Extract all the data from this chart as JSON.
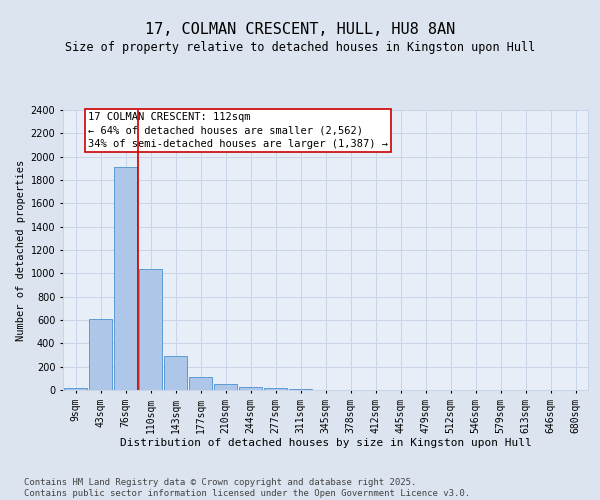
{
  "title": "17, COLMAN CRESCENT, HULL, HU8 8AN",
  "subtitle": "Size of property relative to detached houses in Kingston upon Hull",
  "xlabel": "Distribution of detached houses by size in Kingston upon Hull",
  "ylabel": "Number of detached properties",
  "categories": [
    "9sqm",
    "43sqm",
    "76sqm",
    "110sqm",
    "143sqm",
    "177sqm",
    "210sqm",
    "244sqm",
    "277sqm",
    "311sqm",
    "345sqm",
    "378sqm",
    "412sqm",
    "445sqm",
    "479sqm",
    "512sqm",
    "546sqm",
    "579sqm",
    "613sqm",
    "646sqm",
    "680sqm"
  ],
  "values": [
    20,
    605,
    1910,
    1040,
    295,
    115,
    50,
    30,
    20,
    5,
    0,
    0,
    0,
    0,
    0,
    0,
    0,
    0,
    0,
    0,
    0
  ],
  "bar_color": "#aec6e8",
  "bar_edge_color": "#5b9bd5",
  "red_line_index": 3,
  "annotation_text": "17 COLMAN CRESCENT: 112sqm\n← 64% of detached houses are smaller (2,562)\n34% of semi-detached houses are larger (1,387) →",
  "annotation_box_color": "#ffffff",
  "annotation_box_edge": "#cc0000",
  "red_line_color": "#cc0000",
  "grid_color": "#c8d4e8",
  "bg_color": "#dce4f0",
  "plot_bg_color": "#e8eef8",
  "ylim": [
    0,
    2400
  ],
  "yticks": [
    0,
    200,
    400,
    600,
    800,
    1000,
    1200,
    1400,
    1600,
    1800,
    2000,
    2200,
    2400
  ],
  "footer_text": "Contains HM Land Registry data © Crown copyright and database right 2025.\nContains public sector information licensed under the Open Government Licence v3.0.",
  "title_fontsize": 11,
  "subtitle_fontsize": 8.5,
  "xlabel_fontsize": 8,
  "ylabel_fontsize": 7.5,
  "tick_fontsize": 7,
  "annotation_fontsize": 7.5,
  "footer_fontsize": 6.5
}
